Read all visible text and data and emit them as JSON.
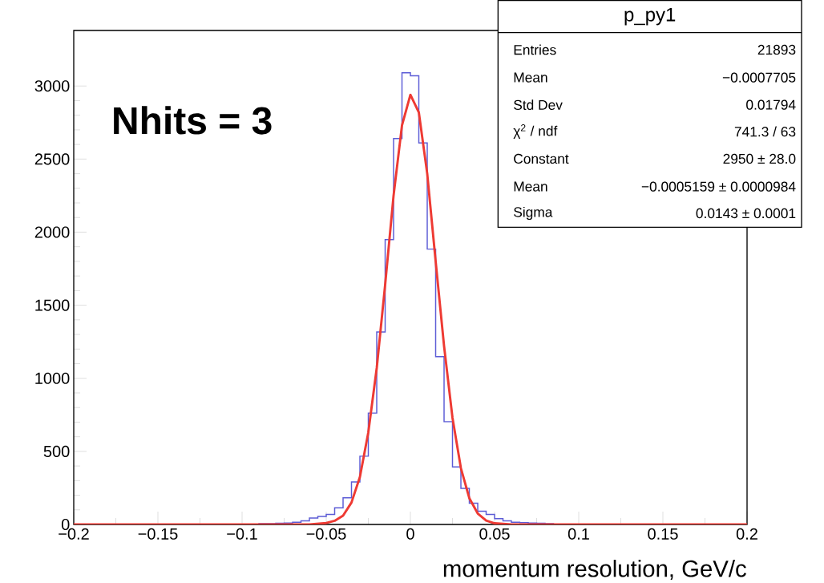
{
  "chart_data": {
    "type": "histogram",
    "xlabel": "momentum resolution, GeV/c",
    "annotations": [
      "p_py1",
      "Entries",
      "21893",
      "Mean",
      "−0.0007705",
      "Std Dev",
      "0.01794",
      "χ$^{2}$ / ndf",
      "741.3 / 63",
      "Constant",
      "2950 ± 28.0",
      "Mean",
      "−0.0005159 ± 0.0000984",
      "Sigma",
      "0.0143 ± 0.0001",
      "Nhits = 3"
    ],
    "xlim": [
      -0.2,
      0.2
    ],
    "ylim": [
      0,
      3380
    ],
    "xticks": [
      {
        "value": -0.2,
        "label": "−0.2"
      },
      {
        "value": -0.15,
        "label": "−0.15"
      },
      {
        "value": -0.1,
        "label": "−0.1"
      },
      {
        "value": -0.05,
        "label": "−0.05"
      },
      0,
      0.05,
      0.1,
      0.15,
      0.2
    ],
    "yticks": [
      0,
      500,
      1000,
      1500,
      2000,
      2500,
      3000
    ],
    "series": [
      {
        "color": "#5c5cd6",
        "bins": [
          -0.2,
          -0.195,
          -0.19,
          -0.185,
          -0.18,
          -0.175,
          -0.17,
          -0.165,
          -0.16,
          -0.155,
          -0.15,
          -0.145,
          -0.14,
          -0.135,
          -0.13,
          -0.125,
          -0.12,
          -0.115,
          -0.11,
          -0.105,
          -0.1,
          -0.095,
          -0.09,
          -0.085,
          -0.08,
          -0.075,
          -0.07,
          -0.065,
          -0.06,
          -0.055,
          -0.05,
          -0.045,
          -0.04,
          -0.035,
          -0.03,
          -0.025,
          -0.02,
          -0.015,
          -0.01,
          -0.005,
          0,
          0.005,
          0.01,
          0.015,
          0.02,
          0.025,
          0.03,
          0.035,
          0.04,
          0.045,
          0.05,
          0.055,
          0.06,
          0.065,
          0.07,
          0.075,
          0.08,
          0.085,
          0.09,
          0.095,
          0.1,
          0.105,
          0.11,
          0.115,
          0.12,
          0.125,
          0.13,
          0.135,
          0.14,
          0.145,
          0.15,
          0.155,
          0.16,
          0.165,
          0.17,
          0.175,
          0.18,
          0.185,
          0.19,
          0.195,
          0.2
        ],
        "values": [
          0,
          0,
          0,
          0,
          0,
          0,
          0,
          0,
          0,
          0,
          0,
          0,
          0,
          0,
          0,
          0,
          0,
          0,
          0,
          2,
          2,
          2,
          5,
          5,
          8,
          10,
          15,
          25,
          44,
          55,
          68,
          114,
          183,
          291,
          467,
          762,
          1317,
          1949,
          2641,
          3090,
          3070,
          2610,
          1884,
          1148,
          703,
          394,
          247,
          145,
          90,
          68,
          40,
          25,
          15,
          12,
          10,
          8,
          5,
          2,
          0,
          0,
          0,
          0,
          0,
          0,
          0,
          0,
          0,
          0,
          0,
          0,
          0,
          0,
          0,
          0,
          0,
          0,
          0,
          0,
          0,
          0
        ]
      },
      {
        "type": "line",
        "color": "#ee3a33",
        "x": [
          -0.2,
          -0.06,
          -0.05,
          -0.045,
          -0.04,
          -0.035,
          -0.03,
          -0.025,
          -0.02,
          -0.015,
          -0.01,
          -0.005,
          0,
          0.005,
          0.01,
          0.015,
          0.02,
          0.025,
          0.03,
          0.035,
          0.04,
          0.045,
          0.05,
          0.06,
          0.2
        ],
        "values": [
          0,
          0,
          10,
          25,
          60,
          150,
          325,
          630,
          1070,
          1640,
          2250,
          2730,
          2940,
          2820,
          2400,
          1800,
          1220,
          730,
          385,
          180,
          75,
          27,
          8,
          0,
          0
        ]
      }
    ]
  }
}
